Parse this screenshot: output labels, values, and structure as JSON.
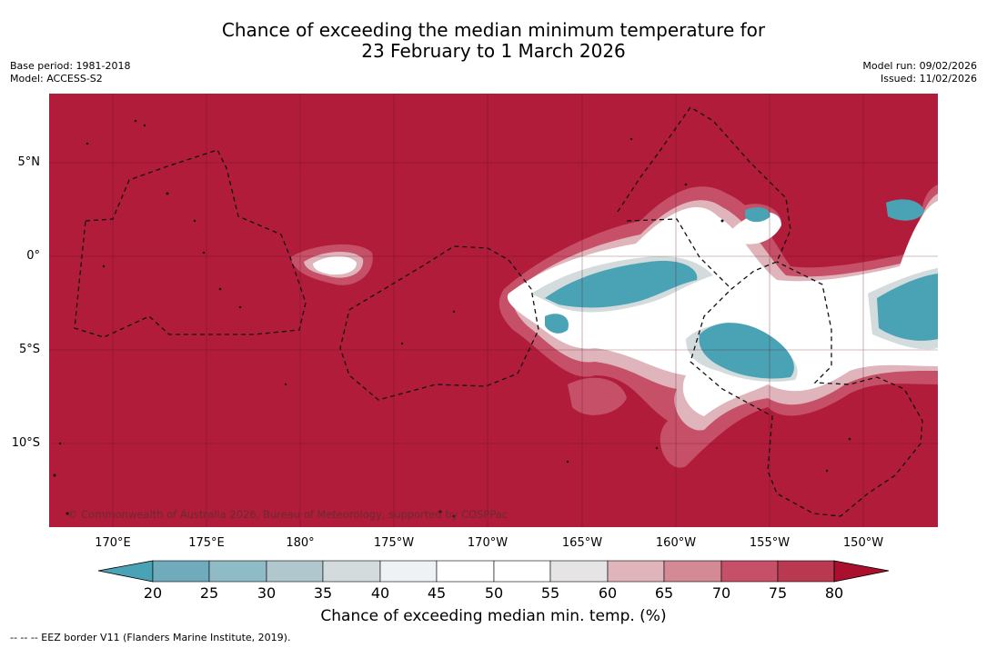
{
  "title": {
    "line1": "Chance of exceeding the median minimum temperature for",
    "line2": "23 February to 1 March 2026"
  },
  "meta_left": {
    "base_period": "Base period: 1981-2018",
    "model": "Model: ACCESS-S2"
  },
  "meta_right": {
    "model_run": "Model run: 09/02/2026",
    "issued": "Issued: 11/02/2026"
  },
  "map": {
    "copyright": "© Commonwealth of Australia 2026, Bureau of Meteorology, supported by COSPPac",
    "lat_labels": [
      "5°N",
      "0°",
      "5°S",
      "10°S"
    ],
    "lon_labels": [
      "170°E",
      "175°E",
      "180°",
      "175°W",
      "170°W",
      "165°W",
      "160°W",
      "155°W",
      "150°W"
    ],
    "colors": {
      "high": "#b01c3a",
      "mid_high": "#c65068",
      "light_pink": "#dfb4bb",
      "white": "#ffffff",
      "teal": "#4aa3b5"
    }
  },
  "colorbar": {
    "ticks": [
      "20",
      "25",
      "30",
      "35",
      "40",
      "45",
      "50",
      "55",
      "60",
      "65",
      "70",
      "75",
      "80"
    ],
    "colors": [
      "#4aa3b5",
      "#6fabba",
      "#8fbbc6",
      "#b0c8cd",
      "#d3dbdd",
      "#eef2f4",
      "#ffffff",
      "#ffffff",
      "#e6e4e5",
      "#dfb4bb",
      "#d48a95",
      "#c65068",
      "#b93a50",
      "#a8102e"
    ],
    "label": "Chance of exceeding median min. temp. (%)"
  },
  "legend_note": "-- -- -- EEZ border V11 (Flanders Marine Institute, 2019)."
}
